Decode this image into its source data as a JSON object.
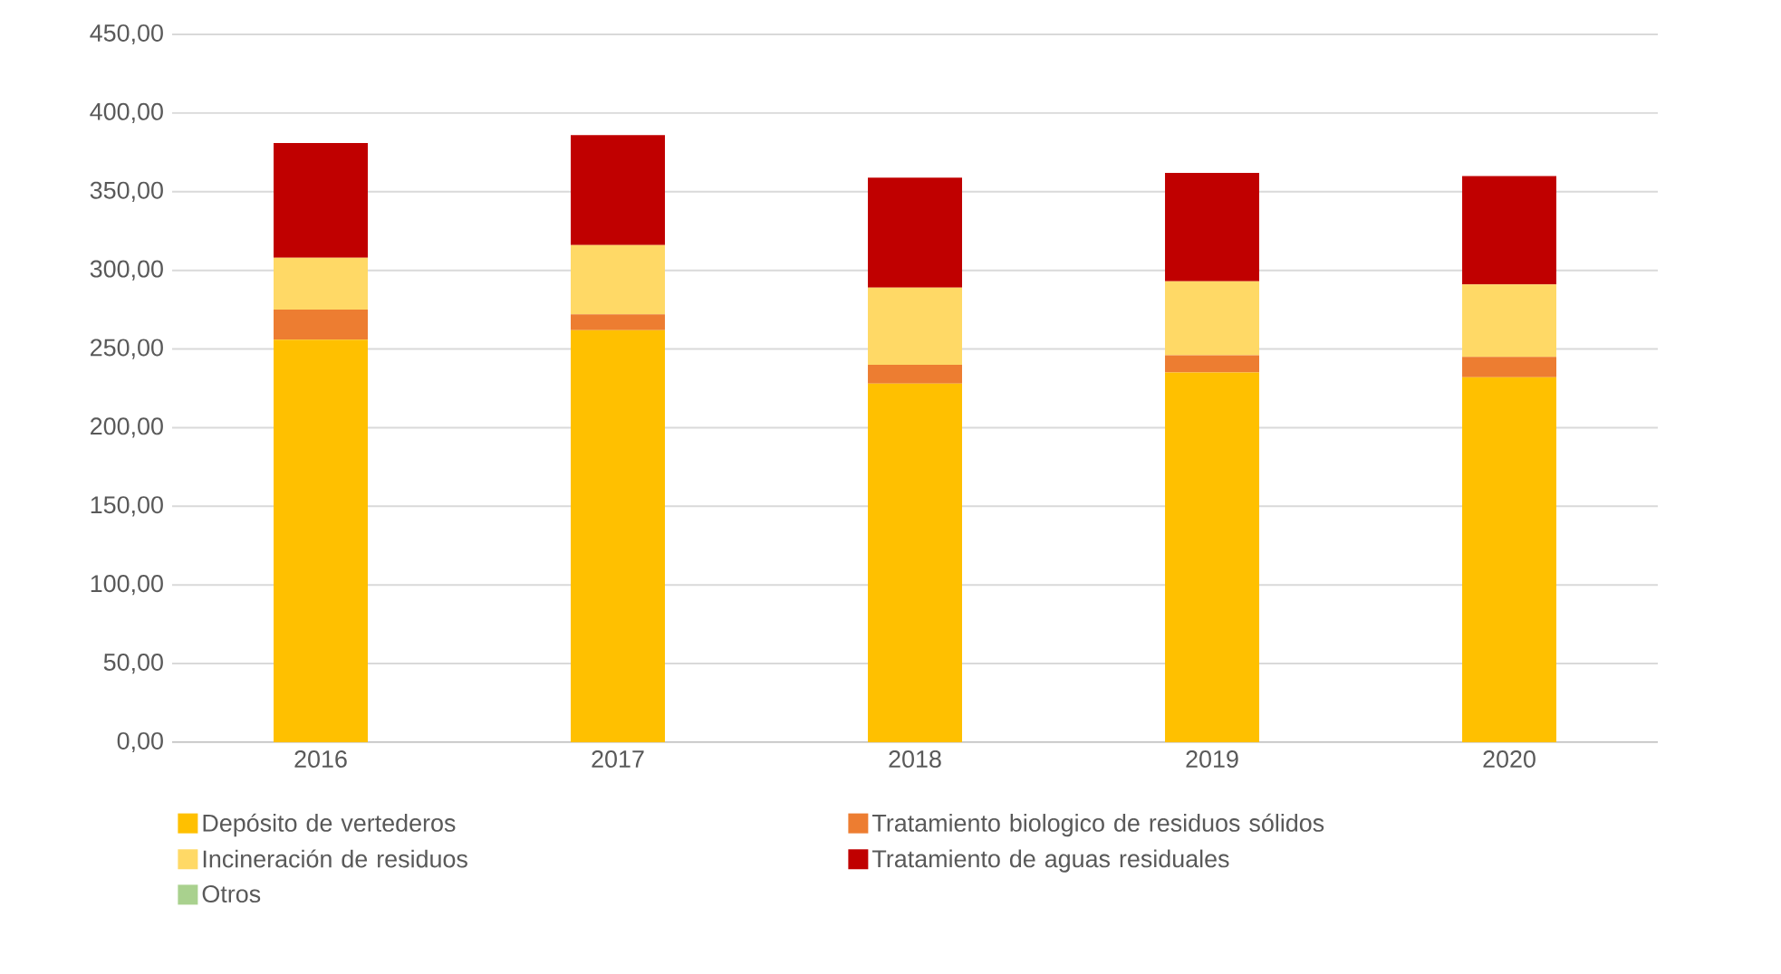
{
  "chart_data": {
    "type": "bar",
    "stacked": true,
    "categories": [
      "2016",
      "2017",
      "2018",
      "2019",
      "2020"
    ],
    "series": [
      {
        "name": "Depósito de vertederos",
        "color": "#ffc000",
        "values": [
          256,
          262,
          228,
          235,
          232
        ]
      },
      {
        "name": "Tratamiento biologico de residuos sólidos",
        "color": "#ed7d31",
        "values": [
          19,
          10,
          12,
          11,
          13
        ]
      },
      {
        "name": "Incineración de residuos",
        "color": "#ffd966",
        "values": [
          33,
          44,
          49,
          47,
          46
        ]
      },
      {
        "name": "Tratamiento de aguas residuales",
        "color": "#c00000",
        "values": [
          73,
          70,
          70,
          69,
          69
        ]
      },
      {
        "name": "Otros",
        "color": "#a9d18e",
        "values": [
          0,
          0,
          0,
          0,
          0
        ]
      }
    ],
    "ylim": [
      0,
      450
    ],
    "yticks": [
      {
        "value": 0,
        "label": "0,00"
      },
      {
        "value": 50,
        "label": "50,00"
      },
      {
        "value": 100,
        "label": "100,00"
      },
      {
        "value": 150,
        "label": "150,00"
      },
      {
        "value": 200,
        "label": "200,00"
      },
      {
        "value": 250,
        "label": "250,00"
      },
      {
        "value": 300,
        "label": "300,00"
      },
      {
        "value": 350,
        "label": "350,00"
      },
      {
        "value": 400,
        "label": "400,00"
      },
      {
        "value": 450,
        "label": "450,00"
      }
    ],
    "grid": "y",
    "legend": "bottom"
  }
}
